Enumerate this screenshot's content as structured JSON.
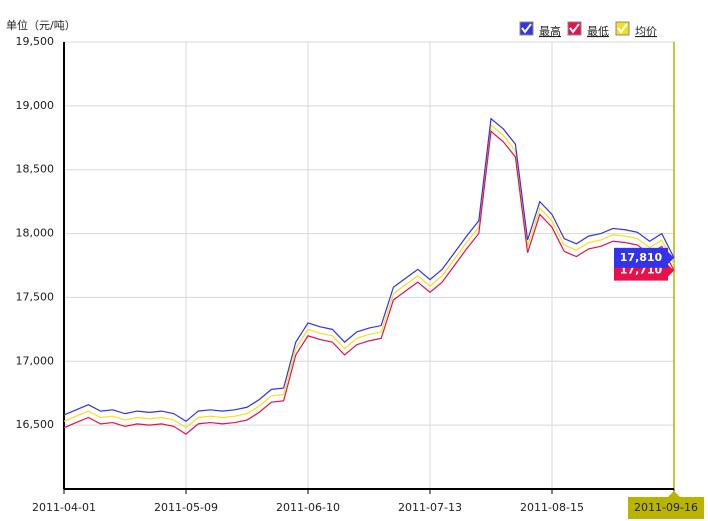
{
  "chart_data": {
    "type": "line",
    "y_label": "单位（元/吨）",
    "categories": [
      "2011-04-01",
      null,
      null,
      null,
      null,
      null,
      null,
      null,
      null,
      null,
      "2011-05-09",
      null,
      null,
      null,
      null,
      null,
      null,
      null,
      null,
      null,
      "2011-06-10",
      null,
      null,
      null,
      null,
      null,
      null,
      null,
      null,
      null,
      "2011-07-13",
      null,
      null,
      null,
      null,
      null,
      null,
      null,
      null,
      null,
      "2011-08-15",
      null,
      null,
      null,
      null,
      null,
      null,
      null,
      null,
      null,
      "2011-09-16"
    ],
    "ylim": [
      16000,
      19500
    ],
    "yticks": [
      {
        "value": 16500,
        "label": "16,500"
      },
      {
        "value": 17000,
        "label": "17,000"
      },
      {
        "value": 17500,
        "label": "17,500"
      },
      {
        "value": 18000,
        "label": "18,000"
      },
      {
        "value": 18500,
        "label": "18,500"
      },
      {
        "value": 19000,
        "label": "19,000"
      },
      {
        "value": 19500,
        "label": "19,500"
      }
    ],
    "grid": true,
    "legend": "top-right",
    "series": [
      {
        "name": "最高",
        "color": "#3333ee",
        "values": [
          16580,
          16620,
          16660,
          16610,
          16620,
          16590,
          16610,
          16600,
          16610,
          16590,
          16530,
          16610,
          16620,
          16610,
          16620,
          16640,
          16700,
          16780,
          16790,
          17150,
          17300,
          17270,
          17250,
          17150,
          17230,
          17260,
          17280,
          17580,
          17650,
          17720,
          17640,
          17720,
          17850,
          17980,
          18100,
          18900,
          18820,
          18700,
          17950,
          18250,
          18150,
          17960,
          17920,
          17980,
          18000,
          18040,
          18030,
          18010,
          17940,
          18000,
          17810
        ],
        "value_labels": [
          null,
          null,
          null,
          null,
          null,
          null,
          null,
          null,
          null,
          null,
          null,
          null,
          null,
          null,
          null,
          null,
          null,
          null,
          null,
          null,
          null,
          null,
          null,
          null,
          null,
          null,
          null,
          null,
          null,
          null,
          null,
          null,
          null,
          null,
          null,
          null,
          null,
          null,
          null,
          null,
          null,
          null,
          null,
          null,
          null,
          null,
          null,
          null,
          null,
          null,
          "17,810"
        ]
      },
      {
        "name": "最低",
        "color": "#e8114a",
        "values": [
          16480,
          16520,
          16560,
          16510,
          16520,
          16490,
          16510,
          16500,
          16510,
          16490,
          16430,
          16510,
          16520,
          16510,
          16520,
          16540,
          16600,
          16680,
          16690,
          17050,
          17200,
          17170,
          17150,
          17050,
          17130,
          17160,
          17180,
          17480,
          17550,
          17620,
          17540,
          17620,
          17750,
          17880,
          18000,
          18800,
          18720,
          18600,
          17850,
          18150,
          18050,
          17860,
          17820,
          17880,
          17900,
          17940,
          17930,
          17910,
          17840,
          17900,
          17710
        ],
        "value_labels": [
          null,
          null,
          null,
          null,
          null,
          null,
          null,
          null,
          null,
          null,
          null,
          null,
          null,
          null,
          null,
          null,
          null,
          null,
          null,
          null,
          null,
          null,
          null,
          null,
          null,
          null,
          null,
          null,
          null,
          null,
          null,
          null,
          null,
          null,
          null,
          null,
          null,
          null,
          null,
          null,
          null,
          null,
          null,
          null,
          null,
          null,
          null,
          null,
          null,
          null,
          "17,710"
        ]
      },
      {
        "name": "均价",
        "color": "#f5e020",
        "values": [
          16530,
          16570,
          16610,
          16560,
          16570,
          16540,
          16560,
          16550,
          16560,
          16540,
          16480,
          16560,
          16570,
          16560,
          16570,
          16590,
          16650,
          16730,
          16740,
          17100,
          17250,
          17220,
          17200,
          17100,
          17180,
          17210,
          17230,
          17530,
          17600,
          17670,
          17590,
          17670,
          17800,
          17930,
          18050,
          18850,
          18770,
          18650,
          17900,
          18200,
          18100,
          17910,
          17870,
          17930,
          17950,
          17990,
          17980,
          17960,
          17890,
          17950,
          17760
        ]
      }
    ]
  }
}
